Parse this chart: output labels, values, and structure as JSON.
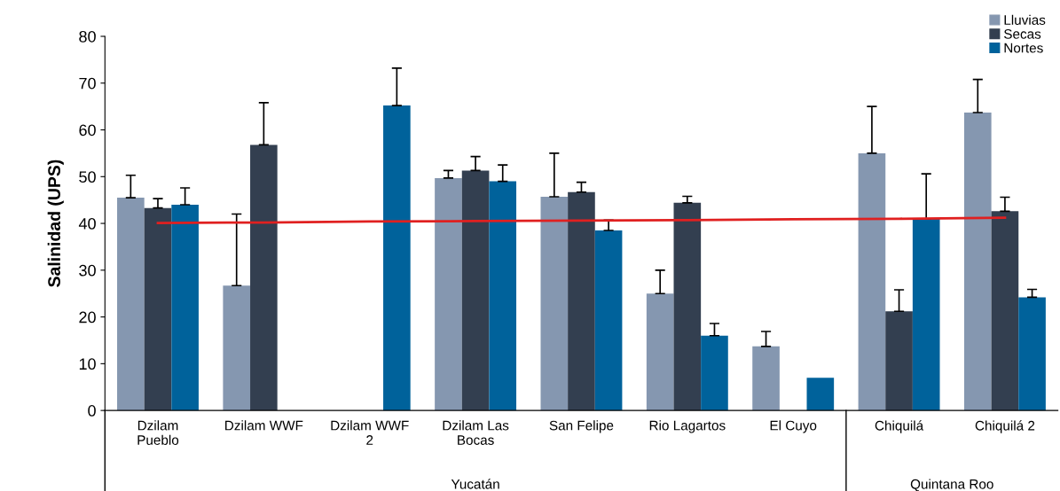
{
  "chart_data": {
    "type": "bar",
    "ylabel": "Salinidad (UPS)",
    "categories": [
      "Dzilam\nPueblo",
      "Dzilam WWF",
      "Dzilam WWF\n2",
      "Dzilam Las\nBocas",
      "San Felipe",
      "Rio Lagartos",
      "El Cuyo",
      "Chiquilá",
      "Chiquilá 2"
    ],
    "series": [
      {
        "name": "Lluvias",
        "color": "#8597b0",
        "values": [
          45.5,
          26.7,
          null,
          49.7,
          45.7,
          25,
          13.7,
          55,
          63.7
        ],
        "errors": [
          [
            45.5,
            50.3
          ],
          [
            26.7,
            42
          ],
          null,
          [
            49.7,
            51.3
          ],
          [
            45.7,
            55
          ],
          [
            25,
            30
          ],
          [
            13.7,
            16.9
          ],
          [
            55,
            65
          ],
          [
            63.7,
            70.8
          ]
        ]
      },
      {
        "name": "Secas",
        "color": "#333f50",
        "values": [
          43.3,
          56.8,
          null,
          51.3,
          46.7,
          44.4,
          null,
          21.2,
          42.6
        ],
        "errors": [
          [
            43.3,
            45.3
          ],
          [
            56.8,
            65.8
          ],
          null,
          [
            51.3,
            54.3
          ],
          [
            46.7,
            48.8
          ],
          [
            44.4,
            45.8
          ],
          null,
          [
            21.2,
            25.8
          ],
          [
            42.6,
            45.6
          ]
        ]
      },
      {
        "name": "Nortes",
        "color": "#00629b",
        "values": [
          44,
          null,
          65.2,
          49,
          38.5,
          16,
          7,
          41,
          24.2
        ],
        "errors": [
          [
            44,
            47.6
          ],
          null,
          [
            65.2,
            73.2
          ],
          [
            49,
            52.5
          ],
          [
            38.5,
            40.7
          ],
          [
            16,
            18.6
          ],
          null,
          [
            41,
            50.6
          ],
          [
            24.2,
            25.9
          ]
        ]
      },
      {
        "type": "line",
        "color": "#e02020",
        "values": [
          40.1,
          40.2,
          40.4,
          40.5,
          40.6,
          40.7,
          40.9,
          41.0,
          41.2
        ]
      }
    ],
    "ylim": [
      0,
      80
    ],
    "yticks": [
      0,
      10,
      20,
      30,
      40,
      50,
      60,
      70,
      80
    ],
    "annotations": [
      "Yucatán",
      "Quintana Roo"
    ],
    "legend": "top right",
    "grid": false
  }
}
